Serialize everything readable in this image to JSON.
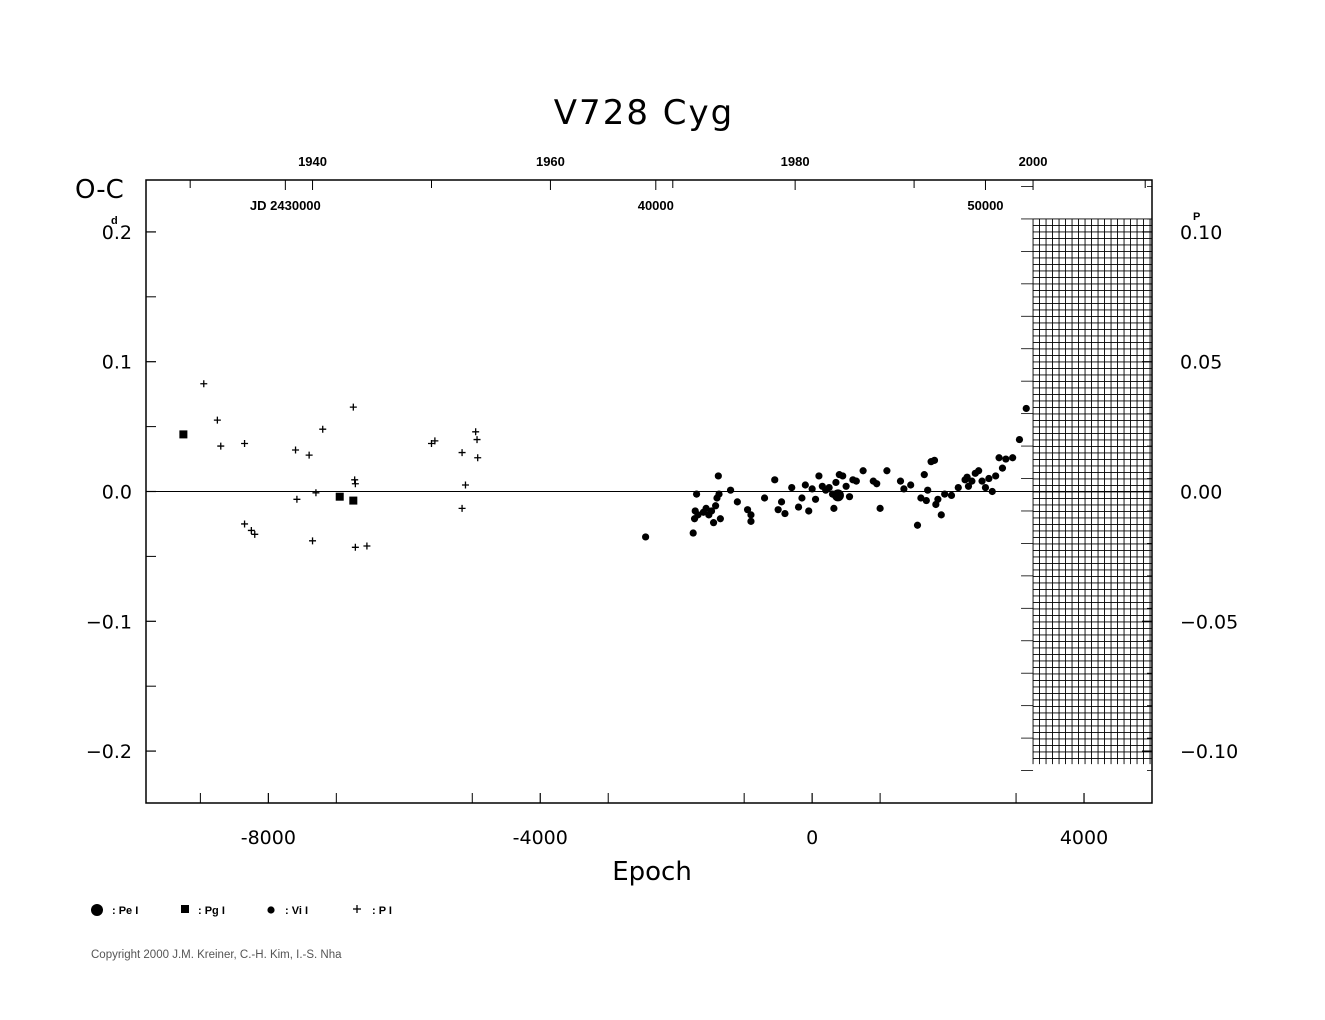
{
  "chart_data": {
    "type": "scatter",
    "title": "V728  Cyg",
    "xlabel": "Epoch",
    "ylabel": "O-C",
    "ylabel_unit": "d",
    "right_unit": "P",
    "xlim": [
      -9800,
      5000
    ],
    "ylim": [
      -0.24,
      0.24
    ],
    "right_ylim": [
      -0.12,
      0.12
    ],
    "x_ticks": [
      "-8000",
      "-4000",
      "0",
      "4000"
    ],
    "x_tick_values": [
      -8000,
      -4000,
      0,
      4000
    ],
    "y_ticks": [
      "0.2",
      "0.1",
      "0.0",
      "−0.1",
      "−0.2"
    ],
    "y_tick_values": [
      0.2,
      0.1,
      0.0,
      -0.1,
      -0.2
    ],
    "right_ticks": [
      "0.10",
      "0.05",
      "0.00",
      "−0.05",
      "−0.10"
    ],
    "right_tick_values": [
      0.1,
      0.05,
      0.0,
      -0.05,
      -0.1
    ],
    "top_year_ticks": [
      "1940",
      "1960",
      "1980",
      "2000"
    ],
    "top_year_epochs": [
      -7350,
      -3850,
      -250,
      3250
    ],
    "top_jd_ticks": [
      "JD 2430000",
      "40000",
      "50000"
    ],
    "top_jd_epochs": [
      -7750,
      -2300,
      2550
    ],
    "hatched_region_x": [
      3250,
      5000
    ],
    "hatched_region_y": [
      -0.21,
      0.21
    ],
    "series": [
      {
        "name": ": Pe I",
        "marker": "large-dot",
        "x": [
          380
        ],
        "y": [
          -0.003
        ]
      },
      {
        "name": ": Pg I",
        "marker": "square",
        "x": [
          -9250,
          -6950,
          -6750
        ],
        "y": [
          0.044,
          -0.004,
          -0.007
        ]
      },
      {
        "name": ": Vi I",
        "marker": "dot",
        "x": [
          -2450,
          -1750,
          -1730,
          -1720,
          -1700,
          -1680,
          -1600,
          -1560,
          -1520,
          -1480,
          -1450,
          -1420,
          -1400,
          -1380,
          -1370,
          -1350,
          -1200,
          -1100,
          -950,
          -900,
          -900,
          -700,
          -550,
          -500,
          -450,
          -400,
          -300,
          -200,
          -150,
          -100,
          -50,
          0,
          50,
          100,
          150,
          200,
          250,
          300,
          320,
          350,
          400,
          450,
          500,
          550,
          600,
          650,
          750,
          900,
          950,
          1000,
          1100,
          1300,
          1350,
          1450,
          1550,
          1600,
          1650,
          1680,
          1700,
          1750,
          1800,
          1820,
          1850,
          1900,
          1950,
          2050,
          2150,
          2250,
          2280,
          2300,
          2350,
          2400,
          2450,
          2500,
          2550,
          2600,
          2650,
          2700,
          2750,
          2800,
          2850,
          2950,
          3050,
          3150
        ],
        "y": [
          -0.035,
          -0.032,
          -0.021,
          -0.015,
          -0.002,
          -0.018,
          -0.016,
          -0.013,
          -0.018,
          -0.015,
          -0.024,
          -0.011,
          -0.005,
          0.012,
          -0.002,
          -0.021,
          0.001,
          -0.008,
          -0.014,
          -0.023,
          -0.018,
          -0.005,
          0.009,
          -0.014,
          -0.008,
          -0.017,
          0.003,
          -0.012,
          -0.005,
          0.005,
          -0.015,
          0.002,
          -0.006,
          0.012,
          0.004,
          0.001,
          0.003,
          -0.002,
          -0.013,
          0.007,
          0.013,
          0.012,
          0.004,
          -0.004,
          0.009,
          0.008,
          0.016,
          0.008,
          0.006,
          -0.013,
          0.016,
          0.008,
          0.002,
          0.005,
          -0.026,
          -0.005,
          0.013,
          -0.007,
          0.001,
          0.023,
          0.024,
          -0.01,
          -0.006,
          -0.018,
          -0.002,
          -0.003,
          0.003,
          0.009,
          0.011,
          0.004,
          0.008,
          0.014,
          0.016,
          0.008,
          0.003,
          0.01,
          0.0,
          0.012,
          0.026,
          0.018,
          0.025,
          0.026,
          0.04,
          0.064
        ]
      },
      {
        "name": ": P I",
        "marker": "plus",
        "x": [
          -8950,
          -8750,
          -8700,
          -8350,
          -8350,
          -8250,
          -8200,
          -7600,
          -7580,
          -7400,
          -7350,
          -7300,
          -7200,
          -6750,
          -6730,
          -6720,
          -6720,
          -6550,
          -5600,
          -5550,
          -5150,
          -5150,
          -5100,
          -4950,
          -4930,
          -4920
        ],
        "y": [
          0.083,
          0.055,
          0.035,
          0.037,
          -0.025,
          -0.03,
          -0.033,
          0.032,
          -0.006,
          0.028,
          -0.038,
          -0.001,
          0.048,
          0.065,
          0.009,
          0.006,
          -0.043,
          -0.042,
          0.037,
          0.039,
          0.03,
          -0.013,
          0.005,
          0.046,
          0.04,
          0.026
        ]
      }
    ]
  },
  "legend": {
    "pe": ": Pe I",
    "pg": ": Pg I",
    "vi": ": Vi I",
    "p": ": P I"
  },
  "copyright": "Copyright 2000 J.M. Kreiner, C.-H. Kim, I.-S. Nha"
}
